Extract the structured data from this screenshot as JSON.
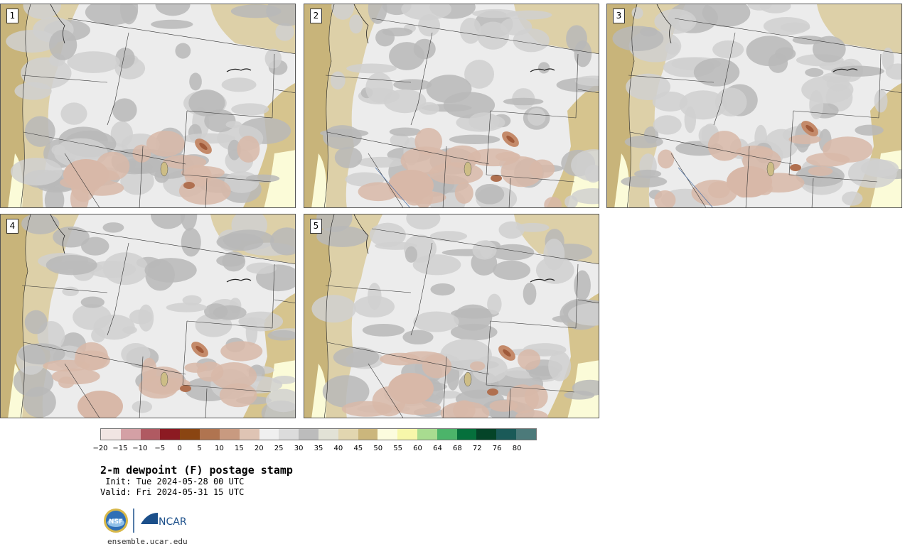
{
  "panels": [
    {
      "label": "1"
    },
    {
      "label": "2"
    },
    {
      "label": "3"
    },
    {
      "label": "4"
    },
    {
      "label": "5"
    }
  ],
  "colorbar": {
    "colors": [
      "#f1e5e3",
      "#d4a0a5",
      "#b05a62",
      "#8c1a22",
      "#8a4512",
      "#b07450",
      "#c89a80",
      "#dfc4b4",
      "#f0f0f0",
      "#dcdcdc",
      "#bcbcbc",
      "#e2e2d6",
      "#e2d6b0",
      "#cbb67c",
      "#fcfcde",
      "#f7f7aa",
      "#a8dc90",
      "#4cb46a",
      "#05703c",
      "#044428",
      "#1a5a58",
      "#4c7a7a"
    ],
    "ticks": [
      "−20",
      "−15",
      "−10",
      "−5",
      "0",
      "5",
      "10",
      "15",
      "20",
      "25",
      "30",
      "35",
      "40",
      "45",
      "50",
      "55",
      "60",
      "64",
      "68",
      "72",
      "76",
      "80"
    ]
  },
  "title": "2-m dewpoint (F) postage stamp",
  "init": " Init: Tue 2024-05-28 00 UTC",
  "valid": "Valid: Fri 2024-05-31 15 UTC",
  "logos": {
    "nsf": "NSF",
    "ncar": "NCAR"
  },
  "url": "ensemble.ucar.edu"
}
